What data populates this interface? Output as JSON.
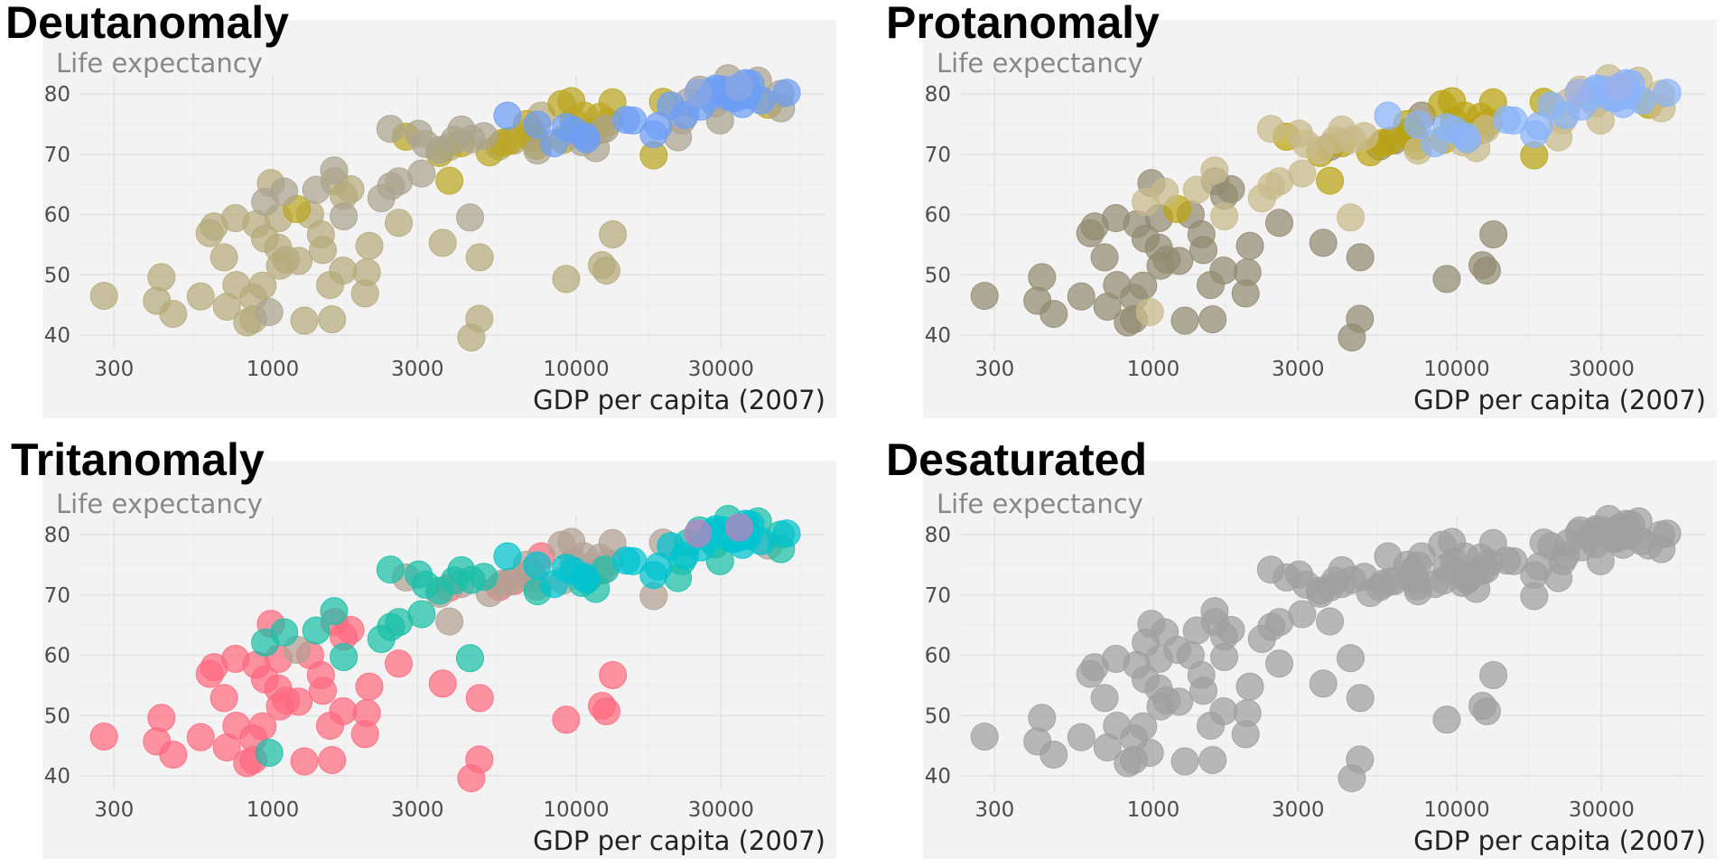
{
  "panels": [
    {
      "title": "Deutanomaly",
      "colors": {
        "g1": "#b6ab7c",
        "g2": "#bba624",
        "g3": "#aaa48f",
        "g4": "#6e9ef5",
        "g5": "#8aa6e0"
      }
    },
    {
      "title": "Protanomaly",
      "colors": {
        "g1": "#938b72",
        "g2": "#bba414",
        "g3": "#c7ba8b",
        "g4": "#8ab4f8",
        "g5": "#9cb0e8"
      }
    },
    {
      "title": "Tritanomaly",
      "colors": {
        "g1": "#ff6b80",
        "g2": "#b3a194",
        "g3": "#1cbfa8",
        "g4": "#00c4d0",
        "g5": "#c07fbf"
      }
    },
    {
      "title": "Desaturated",
      "colors": {
        "g1": "#a0a0a0",
        "g2": "#a0a0a0",
        "g3": "#a0a0a0",
        "g4": "#a0a0a0",
        "g5": "#a0a0a0"
      }
    }
  ],
  "chart_data": {
    "type": "scatter",
    "xlabel": "GDP per capita (2007)",
    "ylabel": "Life expectancy",
    "xscale": "log",
    "xlim": [
      219,
      63000
    ],
    "ylim": [
      37.5,
      84
    ],
    "xticks": [
      {
        "v": 300,
        "label": "300"
      },
      {
        "v": 1000,
        "label": "1000"
      },
      {
        "v": 3000,
        "label": "3000"
      },
      {
        "v": 10000,
        "label": "10000"
      },
      {
        "v": 30000,
        "label": "30000"
      }
    ],
    "yticks": [
      {
        "v": 40,
        "label": "40"
      },
      {
        "v": 50,
        "label": "50"
      },
      {
        "v": 60,
        "label": "60"
      },
      {
        "v": 70,
        "label": "70"
      },
      {
        "v": 80,
        "label": "80"
      }
    ],
    "grid": true,
    "legend": "none",
    "series": [
      {
        "group": "g1",
        "points": [
          [
            6223,
            72.3
          ],
          [
            4797,
            42.7
          ],
          [
            1441,
            56.7
          ],
          [
            12570,
            50.7
          ],
          [
            1217,
            52.3
          ],
          [
            430,
            49.6
          ],
          [
            2042,
            50.4
          ],
          [
            706,
            44.7
          ],
          [
            1704,
            50.7
          ],
          [
            986,
            65.2
          ],
          [
            278,
            46.5
          ],
          [
            3633,
            55.3
          ],
          [
            1545,
            48.3
          ],
          [
            2082,
            54.8
          ],
          [
            5581,
            71.3
          ],
          [
            12154,
            51.6
          ],
          [
            641,
            58.0
          ],
          [
            691,
            52.9
          ],
          [
            13206,
            56.7
          ],
          [
            753,
            59.4
          ],
          [
            1328,
            60.0
          ],
          [
            943,
            56.0
          ],
          [
            579,
            46.4
          ],
          [
            1463,
            54.1
          ],
          [
            1569,
            42.6
          ],
          [
            415,
            45.7
          ],
          [
            12057,
            74.0
          ],
          [
            1045,
            59.4
          ],
          [
            759,
            48.3
          ],
          [
            1042,
            54.5
          ],
          [
            1803,
            64.2
          ],
          [
            10957,
            72.8
          ],
          [
            3820,
            71.2
          ],
          [
            824,
            42.1
          ],
          [
            4811,
            52.9
          ],
          [
            620,
            56.9
          ],
          [
            2014,
            46.9
          ],
          [
            7670,
            76.4
          ],
          [
            863,
            46.2
          ],
          [
            1598,
            65.5
          ],
          [
            1712,
            63.1
          ],
          [
            863,
            42.6
          ],
          [
            926,
            48.2
          ],
          [
            9270,
            49.3
          ],
          [
            2602,
            58.6
          ],
          [
            4513,
            39.6
          ],
          [
            1107,
            52.5
          ],
          [
            883,
            58.4
          ],
          [
            7093,
            73.9
          ],
          [
            1056,
            51.5
          ],
          [
            1271,
            42.4
          ],
          [
            470,
            43.5
          ]
        ]
      },
      {
        "group": "g2",
        "points": [
          [
            12779,
            75.3
          ],
          [
            3822,
            65.6
          ],
          [
            9066,
            72.4
          ],
          [
            36319,
            80.7
          ],
          [
            13172,
            78.6
          ],
          [
            7007,
            72.9
          ],
          [
            9645,
            78.8
          ],
          [
            8948,
            78.3
          ],
          [
            6025,
            72.2
          ],
          [
            6873,
            75.0
          ],
          [
            5728,
            71.9
          ],
          [
            5186,
            70.3
          ],
          [
            1202,
            60.9
          ],
          [
            3548,
            70.2
          ],
          [
            7321,
            72.6
          ],
          [
            11978,
            76.2
          ],
          [
            2749,
            72.9
          ],
          [
            9809,
            75.5
          ],
          [
            4173,
            71.8
          ],
          [
            7409,
            71.4
          ],
          [
            19329,
            78.7
          ],
          [
            18009,
            69.8
          ],
          [
            42952,
            78.2
          ],
          [
            10611,
            76.4
          ],
          [
            11416,
            73.7
          ]
        ]
      },
      {
        "group": "g3",
        "points": [
          [
            974,
            43.8
          ],
          [
            29796,
            75.6
          ],
          [
            1391,
            64.1
          ],
          [
            1714,
            59.7
          ],
          [
            4959,
            73.0
          ],
          [
            39725,
            82.2
          ],
          [
            2452,
            64.7
          ],
          [
            3541,
            70.7
          ],
          [
            11606,
            71.0
          ],
          [
            4471,
            59.5
          ],
          [
            25523,
            80.7
          ],
          [
            31656,
            82.6
          ],
          [
            4519,
            72.5
          ],
          [
            1593,
            67.3
          ],
          [
            23348,
            78.6
          ],
          [
            47307,
            77.6
          ],
          [
            10461,
            72.0
          ],
          [
            12452,
            74.2
          ],
          [
            3096,
            66.8
          ],
          [
            944,
            62.1
          ],
          [
            1091,
            63.8
          ],
          [
            22316,
            75.6
          ],
          [
            2606,
            65.5
          ],
          [
            3190,
            71.7
          ],
          [
            21655,
            72.8
          ],
          [
            47143,
            80.0
          ],
          [
            3970,
            72.4
          ],
          [
            4185,
            74.1
          ],
          [
            28718,
            78.4
          ],
          [
            7458,
            70.6
          ],
          [
            2442,
            74.2
          ],
          [
            3025,
            73.4
          ],
          [
            2281,
            62.7
          ]
        ]
      },
      {
        "group": "g4",
        "points": [
          [
            5937,
            76.4
          ],
          [
            36126,
            79.8
          ],
          [
            33693,
            79.4
          ],
          [
            7446,
            74.9
          ],
          [
            10681,
            73.0
          ],
          [
            14619,
            75.7
          ],
          [
            22833,
            76.5
          ],
          [
            35278,
            78.3
          ],
          [
            33207,
            79.3
          ],
          [
            30470,
            80.7
          ],
          [
            32170,
            79.4
          ],
          [
            27538,
            79.5
          ],
          [
            18009,
            73.3
          ],
          [
            36181,
            81.8
          ],
          [
            40676,
            78.9
          ],
          [
            28570,
            80.5
          ],
          [
            9254,
            74.5
          ],
          [
            36798,
            79.8
          ],
          [
            49357,
            80.2
          ],
          [
            15390,
            75.6
          ],
          [
            20510,
            78.1
          ],
          [
            10808,
            72.5
          ],
          [
            9787,
            74.0
          ],
          [
            18678,
            74.7
          ],
          [
            25768,
            77.9
          ],
          [
            28821,
            80.9
          ],
          [
            33860,
            80.9
          ],
          [
            37506,
            81.7
          ],
          [
            8458,
            71.8
          ],
          [
            33203,
            79.4
          ]
        ]
      },
      {
        "group": "g5",
        "points": [
          [
            34435,
            81.2
          ],
          [
            25185,
            80.2
          ]
        ]
      }
    ]
  }
}
